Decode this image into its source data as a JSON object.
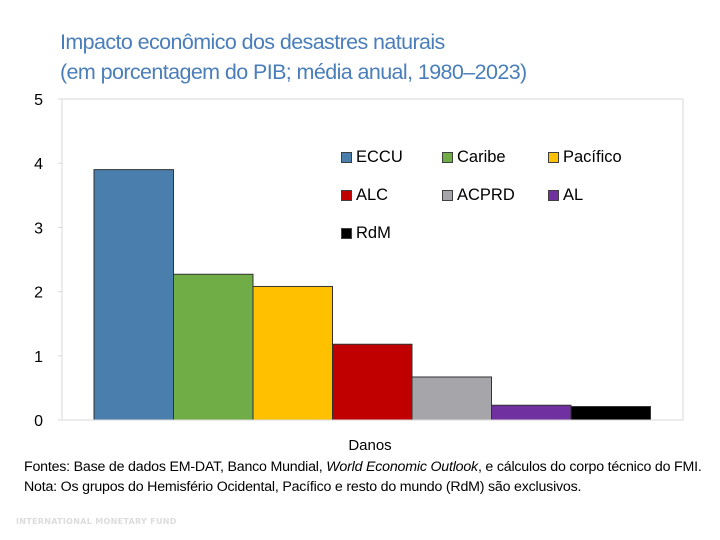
{
  "chart_data": {
    "type": "bar",
    "title": "Impacto econômico dos desastres naturais",
    "subtitle": "(em porcentagem do PIB; média anual, 1980–2023)",
    "xlabel": "Danos",
    "ylabel": "",
    "ylim": [
      0,
      5
    ],
    "yticks": [
      "0",
      "1",
      "2",
      "3",
      "4",
      "5"
    ],
    "grid": false,
    "legend_position": "top-right",
    "categories": [
      "Danos"
    ],
    "series": [
      {
        "name": "ECCU",
        "values": [
          3.9
        ],
        "color": "#4a7eac"
      },
      {
        "name": "Caribe",
        "values": [
          2.27
        ],
        "color": "#70ad47"
      },
      {
        "name": "Pacífico",
        "values": [
          2.08
        ],
        "color": "#ffc000"
      },
      {
        "name": "ALC",
        "values": [
          1.18
        ],
        "color": "#c00000"
      },
      {
        "name": "ACPRD",
        "values": [
          0.67
        ],
        "color": "#a6a6aa"
      },
      {
        "name": "AL",
        "values": [
          0.23
        ],
        "color": "#7030a0"
      },
      {
        "name": "RdM",
        "values": [
          0.21
        ],
        "color": "#000000"
      }
    ]
  },
  "notes": {
    "sources_prefix": "Fontes: Base de dados EM-DAT, Banco Mundial, ",
    "sources_italic": "World Economic Outlook",
    "sources_suffix": ", e cálculos do corpo técnico do FMI.",
    "note": "Nota: Os grupos do Hemisfério Ocidental, Pacífico e resto do mundo (RdM) são exclusivos."
  },
  "watermark": "INTERNATIONAL MONETARY FUND"
}
